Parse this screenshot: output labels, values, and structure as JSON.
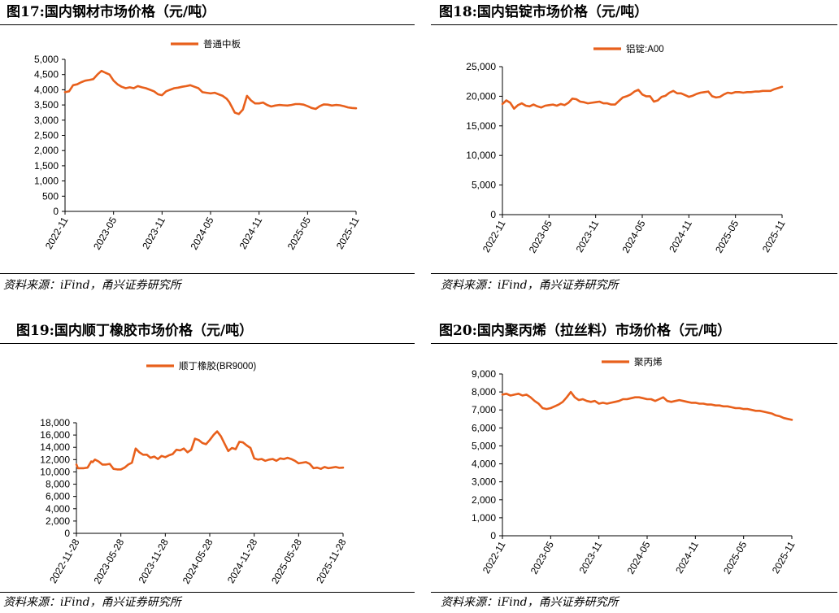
{
  "source_label": "资料来源：iFind，甬兴证券研究所",
  "line_color": "#E8601C",
  "chart_data": [
    {
      "type": "line",
      "title": "图17:国内钢材市场价格（元/吨）",
      "series_name": "普通中板",
      "ylim": [
        0,
        5000
      ],
      "ystep": 500,
      "y_decimals": 0,
      "xlim": [
        0,
        36
      ],
      "xticks": [
        {
          "pos": 0,
          "label": "2022-11"
        },
        {
          "pos": 6,
          "label": "2023-05"
        },
        {
          "pos": 12,
          "label": "2023-11"
        },
        {
          "pos": 18,
          "label": "2024-05"
        },
        {
          "pos": 24,
          "label": "2024-11"
        },
        {
          "pos": 30,
          "label": "2025-05"
        },
        {
          "pos": 36,
          "label": "2025-11"
        }
      ],
      "x": [
        0,
        0.5,
        1,
        1.5,
        2,
        2.5,
        3,
        3.5,
        4,
        4.5,
        5,
        5.5,
        6,
        6.5,
        7,
        7.5,
        8,
        8.5,
        9,
        9.5,
        10,
        10.5,
        11,
        11.5,
        12,
        12.5,
        13,
        13.5,
        14,
        14.5,
        15,
        15.5,
        16,
        16.5,
        17,
        17.5,
        18,
        18.5,
        19,
        19.5,
        20,
        20.3,
        20.6,
        21,
        21.5,
        22,
        22.5,
        23,
        23.5,
        24,
        24.5,
        25,
        25.5,
        26,
        26.5,
        27,
        27.5,
        28,
        28.5,
        29,
        29.5,
        30,
        30.5,
        31,
        31.5,
        32,
        32.5,
        33,
        33.5,
        34,
        34.5,
        35,
        35.5,
        36
      ],
      "y": [
        3920,
        3950,
        4150,
        4180,
        4250,
        4300,
        4320,
        4350,
        4500,
        4620,
        4560,
        4500,
        4300,
        4180,
        4100,
        4050,
        4080,
        4050,
        4120,
        4080,
        4050,
        4000,
        3950,
        3850,
        3820,
        3950,
        4000,
        4050,
        4070,
        4100,
        4120,
        4150,
        4100,
        4050,
        3920,
        3900,
        3880,
        3900,
        3850,
        3800,
        3700,
        3600,
        3450,
        3250,
        3200,
        3350,
        3800,
        3650,
        3550,
        3550,
        3580,
        3500,
        3450,
        3480,
        3500,
        3490,
        3480,
        3500,
        3530,
        3530,
        3510,
        3460,
        3400,
        3370,
        3460,
        3520,
        3510,
        3480,
        3500,
        3490,
        3460,
        3420,
        3400,
        3390
      ],
      "color": "#E8601C"
    },
    {
      "type": "line",
      "title": "图18:国内铝锭市场价格（元/吨）",
      "series_name": "铝锭:A00",
      "ylim": [
        0,
        25000
      ],
      "ystep": 5000,
      "y_decimals": 0,
      "xlim": [
        0,
        36
      ],
      "xticks": [
        {
          "pos": 0,
          "label": "2022-11"
        },
        {
          "pos": 6,
          "label": "2023-05"
        },
        {
          "pos": 12,
          "label": "2023-11"
        },
        {
          "pos": 18,
          "label": "2024-05"
        },
        {
          "pos": 24,
          "label": "2024-11"
        },
        {
          "pos": 30,
          "label": "2025-05"
        },
        {
          "pos": 36,
          "label": "2025-11"
        }
      ],
      "x": [
        0,
        0.5,
        1,
        1.5,
        2,
        2.5,
        3,
        3.5,
        4,
        4.5,
        5,
        5.5,
        6,
        6.5,
        7,
        7.5,
        8,
        8.5,
        9,
        9.5,
        10,
        10.5,
        11,
        11.5,
        12,
        12.5,
        13,
        13.5,
        14,
        14.5,
        15,
        15.5,
        16,
        16.5,
        17,
        17.5,
        18,
        18.5,
        19,
        19.5,
        20,
        20.5,
        21,
        21.5,
        22,
        22.5,
        23,
        23.5,
        24,
        24.5,
        25,
        25.5,
        26,
        26.5,
        27,
        27.5,
        28,
        28.5,
        29,
        29.5,
        30,
        30.5,
        31,
        31.5,
        32,
        32.5,
        33,
        33.5,
        34,
        34.5,
        35,
        35.5,
        36
      ],
      "y": [
        18700,
        19300,
        18900,
        17900,
        18500,
        18800,
        18400,
        18300,
        18600,
        18300,
        18100,
        18400,
        18500,
        18600,
        18400,
        18700,
        18500,
        18900,
        19600,
        19500,
        19100,
        19000,
        18800,
        18900,
        19000,
        19100,
        18800,
        18800,
        18600,
        18600,
        19200,
        19800,
        20000,
        20300,
        20800,
        21100,
        20300,
        20000,
        20000,
        19100,
        19300,
        19900,
        20100,
        20600,
        20900,
        20500,
        20500,
        20200,
        19900,
        20100,
        20400,
        20600,
        20700,
        20800,
        20000,
        19800,
        19900,
        20300,
        20600,
        20500,
        20700,
        20700,
        20600,
        20700,
        20700,
        20800,
        20800,
        20900,
        20900,
        20900,
        21200,
        21400,
        21600
      ]
    },
    {
      "type": "line",
      "title": "图19:国内顺丁橡胶市场价格（元/吨）",
      "series_name": "顺丁橡胶(BR9000)",
      "ylim": [
        0,
        18000
      ],
      "ystep": 2000,
      "y_decimals": 0,
      "xlim": [
        0,
        36
      ],
      "xticks": [
        {
          "pos": 0,
          "label": "2022-11-28"
        },
        {
          "pos": 6,
          "label": "2023-05-28"
        },
        {
          "pos": 12,
          "label": "2023-11-28"
        },
        {
          "pos": 18,
          "label": "2024-05-28"
        },
        {
          "pos": 24,
          "label": "2024-11-28"
        },
        {
          "pos": 30,
          "label": "2025-05-28"
        },
        {
          "pos": 36,
          "label": "2025-11-28"
        }
      ],
      "x": [
        0,
        0.2,
        0.5,
        1,
        1.5,
        2,
        2.2,
        2.5,
        3,
        3.5,
        4,
        4.5,
        5,
        5.5,
        6,
        6.5,
        7,
        7.5,
        8,
        8.5,
        9,
        9.5,
        10,
        10.5,
        11,
        11.5,
        12,
        12.5,
        13,
        13.5,
        14,
        14.5,
        15,
        15.5,
        16,
        16.5,
        17,
        17.5,
        18,
        18.5,
        19,
        19.5,
        20,
        20.5,
        21,
        21.5,
        22,
        22.5,
        23,
        23.5,
        24,
        24.5,
        25,
        25.5,
        26,
        26.5,
        27,
        27.5,
        28,
        28.5,
        29,
        29.5,
        30,
        30.5,
        31,
        31.5,
        32,
        32.5,
        33,
        33.5,
        34,
        34.5,
        35,
        35.5,
        36
      ],
      "y": [
        11200,
        10600,
        10600,
        10600,
        10700,
        11700,
        11600,
        12000,
        11700,
        11200,
        11200,
        11300,
        10500,
        10400,
        10400,
        10700,
        11200,
        11500,
        13800,
        13200,
        12800,
        12800,
        12300,
        12500,
        12100,
        12600,
        12400,
        12700,
        12900,
        13600,
        13500,
        13800,
        13200,
        13600,
        15400,
        15200,
        14700,
        14500,
        15200,
        16000,
        16600,
        15800,
        14600,
        13400,
        13900,
        13700,
        14900,
        14800,
        14300,
        13900,
        12200,
        12000,
        12100,
        11800,
        12000,
        12100,
        11800,
        12200,
        12100,
        12300,
        12100,
        11800,
        11400,
        11500,
        11600,
        11300,
        10600,
        10700,
        10500,
        10800,
        10600,
        10700,
        10800,
        10650,
        10700
      ],
      "color": "#E8601C"
    },
    {
      "type": "line",
      "title": "图20:国内聚丙烯（拉丝料）市场价格（元/吨）",
      "series_name": "聚丙烯",
      "ylim": [
        0,
        9000
      ],
      "ystep": 1000,
      "y_decimals": 0,
      "xlim": [
        0,
        36
      ],
      "xticks": [
        {
          "pos": 0,
          "label": "2022-11"
        },
        {
          "pos": 6,
          "label": "2023-05"
        },
        {
          "pos": 12,
          "label": "2023-11"
        },
        {
          "pos": 18,
          "label": "2024-05"
        },
        {
          "pos": 24,
          "label": "2024-11"
        },
        {
          "pos": 30,
          "label": "2025-05"
        },
        {
          "pos": 36,
          "label": "2025-11"
        }
      ],
      "x": [
        0,
        0.5,
        1,
        1.5,
        2,
        2.5,
        3,
        3.5,
        4,
        4.5,
        5,
        5.5,
        6,
        6.5,
        7,
        7.5,
        8,
        8.5,
        9,
        9.5,
        10,
        10.5,
        11,
        11.5,
        12,
        12.5,
        13,
        13.5,
        14,
        14.5,
        15,
        15.5,
        16,
        16.5,
        17,
        17.5,
        18,
        18.5,
        19,
        19.5,
        20,
        20.5,
        21,
        21.5,
        22,
        22.5,
        23,
        23.5,
        24,
        24.5,
        25,
        25.5,
        26,
        26.5,
        27,
        27.5,
        28,
        28.5,
        29,
        29.5,
        30,
        30.5,
        31,
        31.5,
        32,
        32.5,
        33,
        33.5,
        34,
        34.5,
        35,
        35.5,
        36
      ],
      "y": [
        7850,
        7900,
        7800,
        7850,
        7900,
        7800,
        7850,
        7700,
        7500,
        7350,
        7100,
        7050,
        7100,
        7200,
        7300,
        7450,
        7700,
        8000,
        7700,
        7550,
        7600,
        7500,
        7450,
        7500,
        7350,
        7400,
        7350,
        7400,
        7450,
        7500,
        7600,
        7600,
        7650,
        7700,
        7700,
        7650,
        7600,
        7600,
        7500,
        7600,
        7700,
        7500,
        7450,
        7500,
        7550,
        7500,
        7450,
        7400,
        7400,
        7350,
        7350,
        7300,
        7300,
        7250,
        7250,
        7200,
        7200,
        7150,
        7100,
        7100,
        7050,
        7050,
        7000,
        6950,
        6950,
        6900,
        6850,
        6800,
        6700,
        6650,
        6550,
        6500,
        6450
      ]
    }
  ]
}
